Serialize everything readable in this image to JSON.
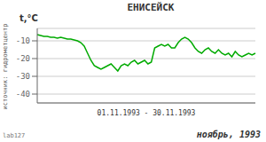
{
  "chart_data": {
    "type": "line",
    "title": "ЕНИСЕЙСК",
    "ylabel": "t,°C",
    "xlabel": "01.11.1993  -  30.11.1993",
    "annotations": [
      "ноябрь, 1993",
      "источник: гидрометцентр",
      "lab127"
    ],
    "values": [
      -6.5,
      -7,
      -7.5,
      -7.5,
      -8,
      -8,
      -8.5,
      -8,
      -8.5,
      -9,
      -9,
      -9.5,
      -10,
      -11,
      -13,
      -17,
      -21,
      -24,
      -25,
      -26,
      -25,
      -24,
      -23,
      -25,
      -27,
      -24,
      -23,
      -24,
      -22,
      -21,
      -23,
      -22,
      -21,
      -23,
      -22,
      -14,
      -13,
      -12,
      -13,
      -12,
      -14,
      -14,
      -11,
      -9,
      -8,
      -9,
      -11,
      -14,
      -16,
      -17,
      -15,
      -14,
      -16,
      -17,
      -15,
      -17,
      -18,
      -17,
      -19,
      -16,
      -18,
      -19,
      -18,
      -17,
      -18,
      -17
    ],
    "color": "#00aa00",
    "ylim": [
      -45,
      -3
    ],
    "yticks": [
      -40,
      -30,
      -20,
      -10
    ],
    "grid": true,
    "tick_labels": "y"
  }
}
